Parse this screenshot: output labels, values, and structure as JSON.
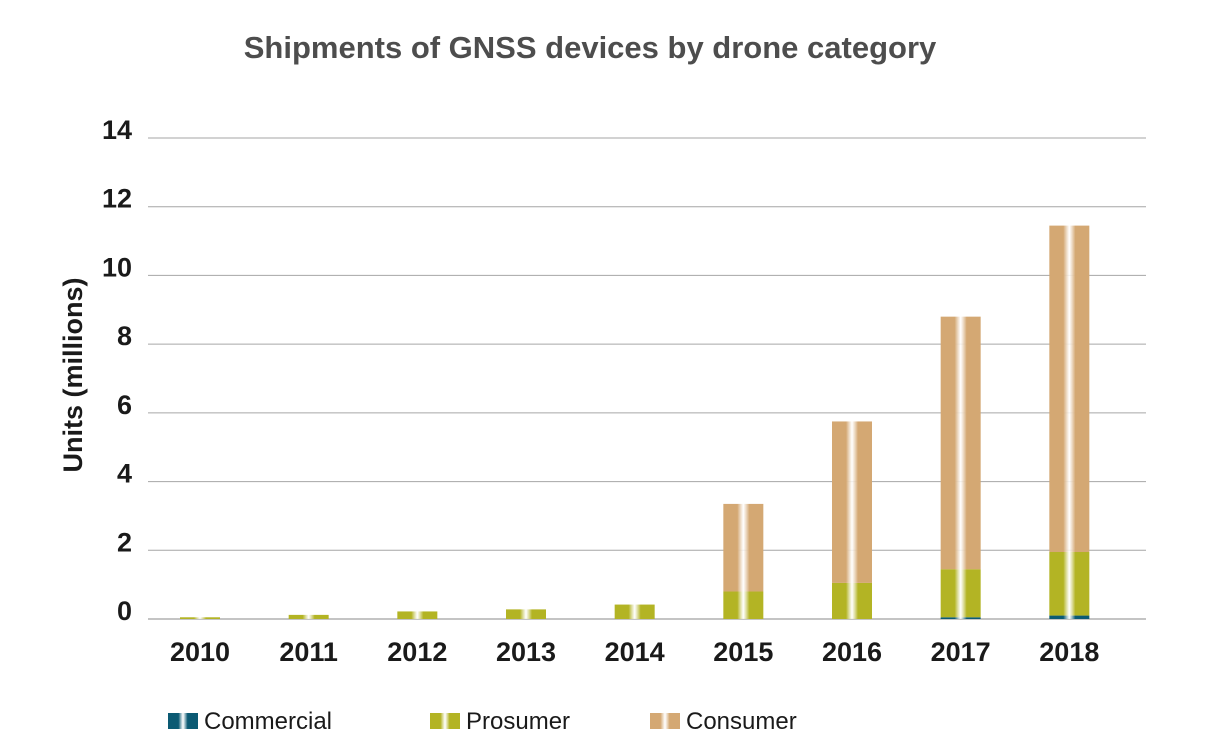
{
  "chart_data": {
    "type": "bar",
    "stacked": true,
    "title": "Shipments of GNSS devices by drone category",
    "xlabel": "",
    "ylabel": "Units (millions)",
    "ylim": [
      0,
      14
    ],
    "yticks": [
      0,
      2,
      4,
      6,
      8,
      10,
      12,
      14
    ],
    "grid": true,
    "legend_position": "bottom",
    "categories": [
      "2010",
      "2011",
      "2012",
      "2013",
      "2014",
      "2015",
      "2016",
      "2017",
      "2018"
    ],
    "series": [
      {
        "name": "Commercial",
        "color": "#0b5a73",
        "values": [
          0,
          0,
          0,
          0,
          0,
          0,
          0,
          0.05,
          0.1
        ]
      },
      {
        "name": "Prosumer",
        "color": "#b3b424",
        "values": [
          0.05,
          0.12,
          0.22,
          0.28,
          0.42,
          0.8,
          1.05,
          1.4,
          1.85
        ]
      },
      {
        "name": "Consumer",
        "color": "#d4a873",
        "values": [
          0,
          0,
          0,
          0,
          0,
          2.55,
          4.7,
          7.35,
          9.5
        ]
      }
    ]
  }
}
